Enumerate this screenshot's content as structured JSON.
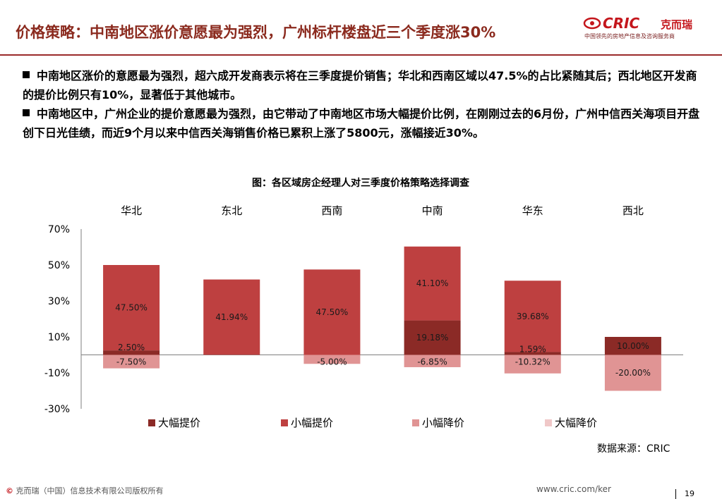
{
  "header": {
    "title": "价格策略：中南地区涨价意愿最为强烈，广州标杆楼盘近三个季度涨30%",
    "logo_text": "CRIC",
    "logo_cn": "克而瑞",
    "logo_slogan": "中国领先的房地产信息及咨询服务商"
  },
  "bullets": [
    "中南地区涨价的意愿最为强烈，超六成开发商表示将在三季度提价销售；华北和西南区域以47.5%的占比紧随其后；西北地区开发商的提价比例只有10%，显著低于其他城市。",
    "中南地区中，广州企业的提价意愿最为强烈，由它带动了中南地区市场大幅提价比例，在刚刚过去的6月份，广州中信西关海项目开盘创下日光佳绩，而近9个月以来中信西关海销售价格已累积上涨了5800元，涨幅接近30%。"
  ],
  "chart_data": {
    "type": "bar",
    "stacked": true,
    "title": "图：各区域房企经理人对三季度价格策略选择调查",
    "categories": [
      "华北",
      "东北",
      "西南",
      "中南",
      "华东",
      "西北"
    ],
    "y_ticks": [
      "70%",
      "50%",
      "30%",
      "10%",
      "-10%",
      "-30%"
    ],
    "ylim": [
      -30,
      70
    ],
    "series": [
      {
        "name": "大幅提价",
        "color": "#8b2a26",
        "values": [
          2.5,
          0,
          0,
          19.18,
          1.59,
          10.0
        ],
        "labels": [
          "2.50%",
          "",
          "",
          "19.18%",
          "1.59%",
          "10.00%"
        ]
      },
      {
        "name": "小幅提价",
        "color": "#be4040",
        "values": [
          47.5,
          41.94,
          47.5,
          41.1,
          39.68,
          0
        ],
        "labels": [
          "47.50%",
          "41.94%",
          "47.50%",
          "41.10%",
          "39.68%",
          ""
        ]
      },
      {
        "name": "小幅降价",
        "color": "#e09494",
        "values": [
          -7.5,
          0,
          -5.0,
          -6.85,
          -10.32,
          -20.0
        ],
        "labels": [
          "-7.50%",
          "",
          "-5.00%",
          "-6.85%",
          "-10.32%",
          "-20.00%"
        ]
      },
      {
        "name": "大幅降价",
        "color": "#f0c8c8",
        "values": [
          0,
          0,
          0,
          0,
          0,
          0
        ],
        "labels": [
          "",
          "",
          "",
          "",
          "",
          ""
        ]
      }
    ],
    "grid": false,
    "legend": "bottom"
  },
  "source": "数据来源：CRIC",
  "footer": {
    "copyright_symbol": "©",
    "copyright": "克而瑞（中国）信息技术有限公司版权所有",
    "url": "www.cric.com/ker",
    "page": "19"
  }
}
